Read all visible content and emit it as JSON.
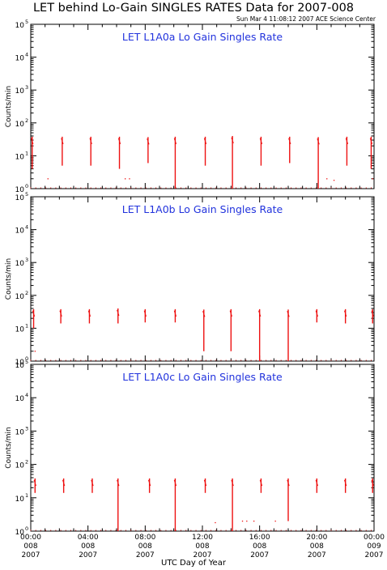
{
  "figure": {
    "title": "LET behind Lo-Gain SINGLES RATES Data for 2007-008",
    "timestamp": "Sun Mar  4 11:08:12 2007 ACE Science Center",
    "xlabel": "UTC Day of Year",
    "colors": {
      "data": "#ee1111",
      "panel_title": "#2233dd",
      "axes": "#000000"
    }
  },
  "chart_data": [
    {
      "type": "line",
      "title": "LET L1A0a Lo Gain Singles Rate",
      "ylabel": "Counts/min",
      "yscale": "log",
      "ylim": [
        1,
        100000
      ],
      "xlim_hours": [
        0,
        24
      ],
      "x_ticks": [
        {
          "time": "00:00",
          "day": "008",
          "year": "2007"
        },
        {
          "time": "04:00",
          "day": "008",
          "year": "2007"
        },
        {
          "time": "08:00",
          "day": "008",
          "year": "2007"
        },
        {
          "time": "12:00",
          "day": "008",
          "year": "2007"
        },
        {
          "time": "16:00",
          "day": "008",
          "year": "2007"
        },
        {
          "time": "20:00",
          "day": "008",
          "year": "2007"
        },
        {
          "time": "00:00",
          "day": "009",
          "year": "2007"
        }
      ],
      "y_ticks": [
        {
          "base": "10",
          "exp": "0"
        },
        {
          "base": "10",
          "exp": "1"
        },
        {
          "base": "10",
          "exp": "2"
        },
        {
          "base": "10",
          "exp": "3"
        },
        {
          "base": "10",
          "exp": "4"
        },
        {
          "base": "10",
          "exp": "5"
        }
      ],
      "series": [
        {
          "spikes": [
            {
              "x": 0.1,
              "low": 4,
              "high": 38
            },
            {
              "x": 2.2,
              "low": 5,
              "high": 38
            },
            {
              "x": 4.2,
              "low": 5,
              "high": 38
            },
            {
              "x": 6.2,
              "low": 4,
              "high": 38
            },
            {
              "x": 8.2,
              "low": 6,
              "high": 37
            },
            {
              "x": 10.1,
              "low": 1,
              "high": 38
            },
            {
              "x": 12.2,
              "low": 5,
              "high": 38
            },
            {
              "x": 14.1,
              "low": 1,
              "high": 40
            },
            {
              "x": 16.1,
              "low": 5,
              "high": 38
            },
            {
              "x": 18.1,
              "low": 6,
              "high": 38
            },
            {
              "x": 20.1,
              "low": 1,
              "high": 37
            },
            {
              "x": 22.1,
              "low": 5,
              "high": 38
            },
            {
              "x": 23.8,
              "low": 4,
              "high": 38
            }
          ],
          "scatter": [
            {
              "x": 1.2,
              "y": 2
            },
            {
              "x": 6.6,
              "y": 2
            },
            {
              "x": 6.9,
              "y": 2
            },
            {
              "x": 20.7,
              "y": 2
            },
            {
              "x": 21.2,
              "y": 1.8
            },
            {
              "x": 23.9,
              "y": 2
            }
          ]
        }
      ]
    },
    {
      "type": "line",
      "title": "LET L1A0b Lo Gain Singles Rate",
      "ylabel": "Counts/min",
      "yscale": "log",
      "ylim": [
        1,
        100000
      ],
      "xlim_hours": [
        0,
        24
      ],
      "y_ticks": [
        {
          "base": "10",
          "exp": "0"
        },
        {
          "base": "10",
          "exp": "1"
        },
        {
          "base": "10",
          "exp": "2"
        },
        {
          "base": "10",
          "exp": "3"
        },
        {
          "base": "10",
          "exp": "4"
        },
        {
          "base": "10",
          "exp": "5"
        }
      ],
      "series": [
        {
          "spikes": [
            {
              "x": 0.2,
              "low": 10,
              "high": 38
            },
            {
              "x": 2.1,
              "low": 14,
              "high": 38
            },
            {
              "x": 4.1,
              "low": 14,
              "high": 38
            },
            {
              "x": 6.1,
              "low": 14,
              "high": 40
            },
            {
              "x": 8.0,
              "low": 15,
              "high": 38
            },
            {
              "x": 10.1,
              "low": 15,
              "high": 38
            },
            {
              "x": 12.1,
              "low": 2,
              "high": 37
            },
            {
              "x": 14.0,
              "low": 2,
              "high": 38
            },
            {
              "x": 16.0,
              "low": 1,
              "high": 38
            },
            {
              "x": 18.0,
              "low": 1,
              "high": 37
            },
            {
              "x": 20.0,
              "low": 15,
              "high": 38
            },
            {
              "x": 22.0,
              "low": 14,
              "high": 38
            },
            {
              "x": 23.9,
              "low": 14,
              "high": 38
            }
          ],
          "scatter": [
            {
              "x": 0.3,
              "y": 2
            }
          ]
        }
      ]
    },
    {
      "type": "line",
      "title": "LET L1A0c Lo Gain Singles Rate",
      "ylabel": "Counts/min",
      "yscale": "log",
      "ylim": [
        1,
        100000
      ],
      "xlim_hours": [
        0,
        24
      ],
      "y_ticks": [
        {
          "base": "10",
          "exp": "0"
        },
        {
          "base": "10",
          "exp": "1"
        },
        {
          "base": "10",
          "exp": "2"
        },
        {
          "base": "10",
          "exp": "3"
        },
        {
          "base": "10",
          "exp": "4"
        },
        {
          "base": "10",
          "exp": "5"
        }
      ],
      "series": [
        {
          "spikes": [
            {
              "x": 0.3,
              "low": 14,
              "high": 38
            },
            {
              "x": 2.3,
              "low": 14,
              "high": 38
            },
            {
              "x": 4.3,
              "low": 14,
              "high": 38
            },
            {
              "x": 6.1,
              "low": 1,
              "high": 38
            },
            {
              "x": 8.3,
              "low": 14,
              "high": 38
            },
            {
              "x": 10.1,
              "low": 1,
              "high": 38
            },
            {
              "x": 12.2,
              "low": 14,
              "high": 38
            },
            {
              "x": 14.1,
              "low": 1,
              "high": 38
            },
            {
              "x": 16.1,
              "low": 14,
              "high": 38
            },
            {
              "x": 18.0,
              "low": 2,
              "high": 38
            },
            {
              "x": 20.0,
              "low": 14,
              "high": 38
            },
            {
              "x": 22.0,
              "low": 14,
              "high": 38
            },
            {
              "x": 23.9,
              "low": 14,
              "high": 38
            }
          ],
          "scatter": [
            {
              "x": 14.8,
              "y": 2
            },
            {
              "x": 15.1,
              "y": 2
            },
            {
              "x": 15.6,
              "y": 2
            },
            {
              "x": 12.9,
              "y": 1.8
            },
            {
              "x": 17.1,
              "y": 2
            }
          ]
        }
      ]
    }
  ]
}
